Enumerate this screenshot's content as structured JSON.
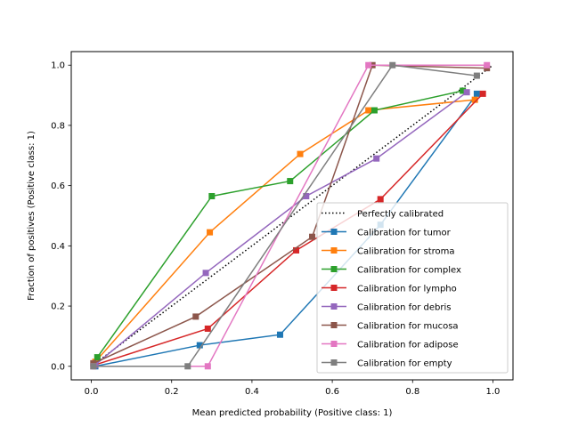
{
  "chart_data": {
    "type": "line",
    "xlabel": "Mean predicted probability (Positive class: 1)",
    "ylabel": "Fraction of positives (Positive class: 1)",
    "xlim": [
      -0.05,
      1.05
    ],
    "ylim": [
      -0.045,
      1.045
    ],
    "xticks": [
      "0.0",
      "0.2",
      "0.4",
      "0.6",
      "0.8",
      "1.0"
    ],
    "yticks": [
      "0.0",
      "0.2",
      "0.4",
      "0.6",
      "0.8",
      "1.0"
    ],
    "grid": false,
    "legend_position": "lower-right",
    "reference": {
      "name": "Perfectly calibrated",
      "x": [
        0,
        1
      ],
      "y": [
        0,
        1
      ],
      "color": "#000000",
      "style": "dotted"
    },
    "series": [
      {
        "name": "Calibration for tumor",
        "color": "#1f77b4",
        "x": [
          0.01,
          0.27,
          0.47,
          0.72,
          0.96
        ],
        "y": [
          0.0,
          0.07,
          0.105,
          0.47,
          0.905
        ]
      },
      {
        "name": "Calibration for stroma",
        "color": "#ff7f0e",
        "x": [
          0.01,
          0.295,
          0.52,
          0.69,
          0.955
        ],
        "y": [
          0.015,
          0.445,
          0.705,
          0.85,
          0.885
        ]
      },
      {
        "name": "Calibration for complex",
        "color": "#2ca02c",
        "x": [
          0.015,
          0.3,
          0.495,
          0.705,
          0.925
        ],
        "y": [
          0.03,
          0.565,
          0.615,
          0.85,
          0.915
        ]
      },
      {
        "name": "Calibration for lympho",
        "color": "#d62728",
        "x": [
          0.01,
          0.29,
          0.51,
          0.72,
          0.975
        ],
        "y": [
          0.005,
          0.125,
          0.385,
          0.555,
          0.905
        ]
      },
      {
        "name": "Calibration for debris",
        "color": "#9467bd",
        "x": [
          0.01,
          0.285,
          0.535,
          0.71,
          0.935
        ],
        "y": [
          0.005,
          0.31,
          0.565,
          0.69,
          0.91
        ]
      },
      {
        "name": "Calibration for mucosa",
        "color": "#8c564b",
        "x": [
          0.005,
          0.26,
          0.55,
          0.7,
          0.985
        ],
        "y": [
          0.01,
          0.165,
          0.43,
          1.0,
          0.99
        ]
      },
      {
        "name": "Calibration for adipose",
        "color": "#e377c2",
        "x": [
          0.005,
          0.29,
          0.69,
          0.985
        ],
        "y": [
          0.0,
          0.0,
          1.0,
          1.0
        ]
      },
      {
        "name": "Calibration for empty",
        "color": "#7f7f7f",
        "x": [
          0.005,
          0.24,
          0.75,
          0.96
        ],
        "y": [
          0.0,
          0.0,
          1.0,
          0.965
        ]
      }
    ]
  }
}
